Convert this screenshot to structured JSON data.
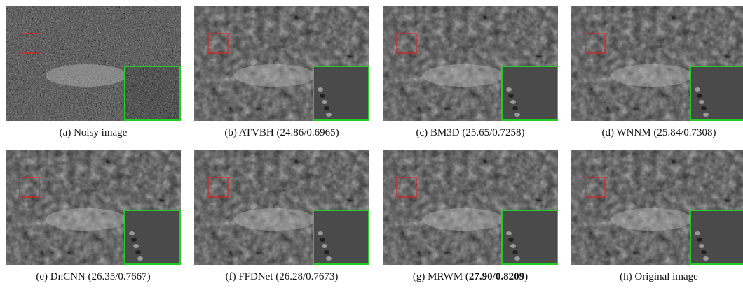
{
  "figure": {
    "panels": [
      {
        "caption": "(a) Noisy image"
      },
      {
        "caption": "(b) ATVBH (24.86/0.6965)"
      },
      {
        "caption": "(c) BM3D (25.65/0.7258)"
      },
      {
        "caption": "(d) WNNM (25.84/0.7308)"
      },
      {
        "caption": "(e) DnCNN (26.35/0.7667)"
      },
      {
        "caption": "(f) FFDNet (26.28/0.7673)"
      },
      {
        "caption_parts": [
          "(g) MRWM (",
          "27.90/0.8209",
          ")"
        ]
      },
      {
        "caption": "(h) Original image"
      }
    ]
  }
}
